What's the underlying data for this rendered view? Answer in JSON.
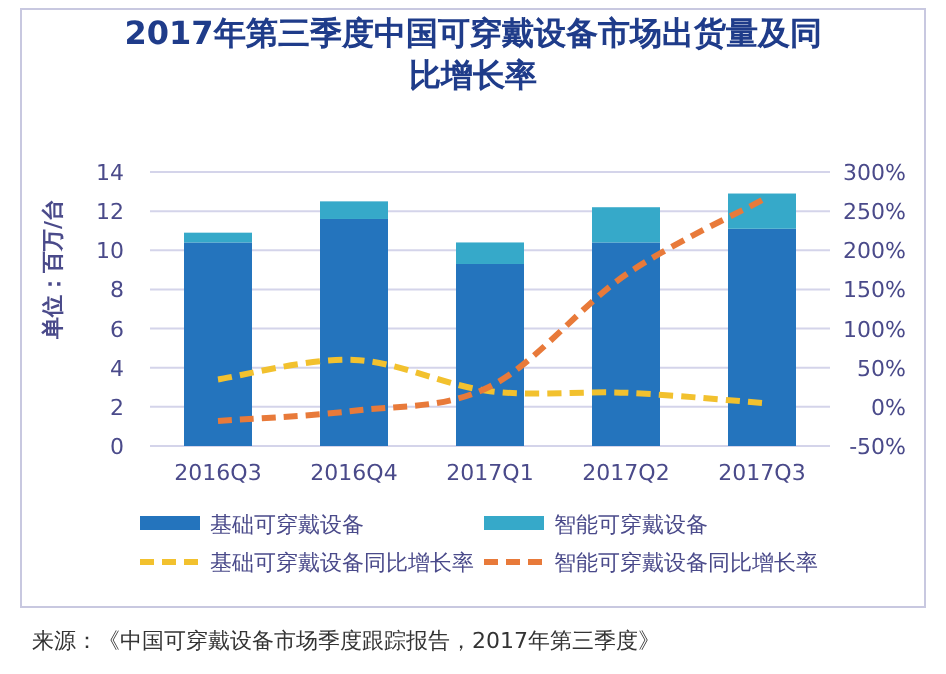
{
  "chart_data": {
    "type": "bar",
    "stacked": true,
    "title": "2017年第三季度中国可穿戴设备市场出货量及同比增长率",
    "ylabel": "单位：百万/台",
    "categories": [
      "2016Q3",
      "2016Q4",
      "2017Q1",
      "2017Q2",
      "2017Q3"
    ],
    "series": [
      {
        "name": "基础可穿戴设备",
        "color": "#2474bd",
        "values": [
          10.4,
          11.6,
          9.3,
          10.4,
          11.1
        ]
      },
      {
        "name": "智能可穿戴设备",
        "color": "#36a9c9",
        "values": [
          0.5,
          0.9,
          1.1,
          1.8,
          1.8
        ]
      },
      {
        "name": "基础可穿戴设备同比增长率",
        "type": "line",
        "axis": "y2",
        "line_style": "dashed",
        "color": "#f2c12e",
        "values": [
          35,
          60,
          20,
          18,
          5
        ]
      },
      {
        "name": "智能可穿戴设备同比增长率",
        "type": "line",
        "axis": "y2",
        "line_style": "dashed",
        "color": "#e87a3a",
        "values": [
          -18,
          -5,
          26,
          169,
          264
        ]
      }
    ],
    "ylim": [
      0,
      14
    ],
    "yticks": [
      0,
      2,
      4,
      6,
      8,
      10,
      12,
      14
    ],
    "y2lim": [
      -50,
      300
    ],
    "y2ticks": [
      {
        "value": -50,
        "label": "-50%"
      },
      {
        "value": 0,
        "label": "0%"
      },
      {
        "value": 50,
        "label": "50%"
      },
      {
        "value": 100,
        "label": "100%"
      },
      {
        "value": 150,
        "label": "150%"
      },
      {
        "value": 200,
        "label": "200%"
      },
      {
        "value": 250,
        "label": "250%"
      },
      {
        "value": 300,
        "label": "300%"
      }
    ],
    "grid": "y",
    "legend": "bottom",
    "annotations": [
      "来源：《中国可穿戴设备市场季度跟踪报告，2017年第三季度》"
    ]
  }
}
